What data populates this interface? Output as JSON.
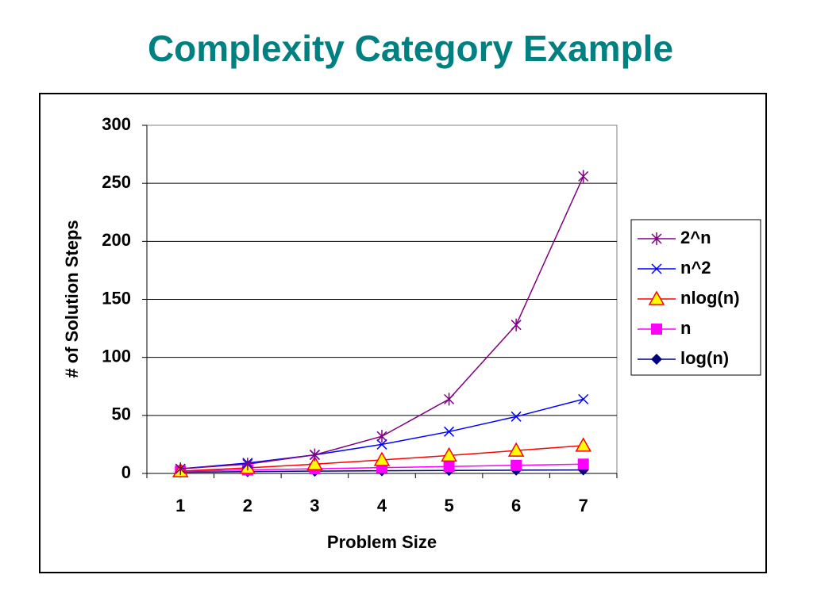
{
  "chart_data": {
    "type": "line",
    "title": "Complexity Category Example",
    "x_label": "Problem Size",
    "y_label": "# of Solution Steps",
    "categories": [
      "1",
      "2",
      "3",
      "4",
      "5",
      "6",
      "7"
    ],
    "series": [
      {
        "name": "2^n",
        "color": "#800080",
        "marker": "asterisk",
        "values": [
          4,
          8,
          16,
          32,
          64,
          128,
          256
        ]
      },
      {
        "name": "n^2",
        "color": "#0000ff",
        "marker": "x",
        "values": [
          4,
          9,
          16,
          25,
          36,
          49,
          64
        ]
      },
      {
        "name": "nlog(n)",
        "color": "#ff0000",
        "marker": "triangle",
        "values": [
          2,
          4.75,
          8,
          11.6,
          15.5,
          19.7,
          24
        ]
      },
      {
        "name": "n",
        "color": "#ff00ff",
        "marker": "square",
        "values": [
          2,
          3,
          4,
          5,
          6,
          7,
          8
        ]
      },
      {
        "name": "log(n)",
        "color": "#000080",
        "marker": "diamond",
        "values": [
          1,
          1.58,
          2,
          2.32,
          2.58,
          2.81,
          3
        ]
      }
    ],
    "ylim": [
      0,
      300
    ],
    "yticks": [
      0,
      50,
      100,
      150,
      200,
      250,
      300
    ],
    "grid": true,
    "legend": "right"
  }
}
